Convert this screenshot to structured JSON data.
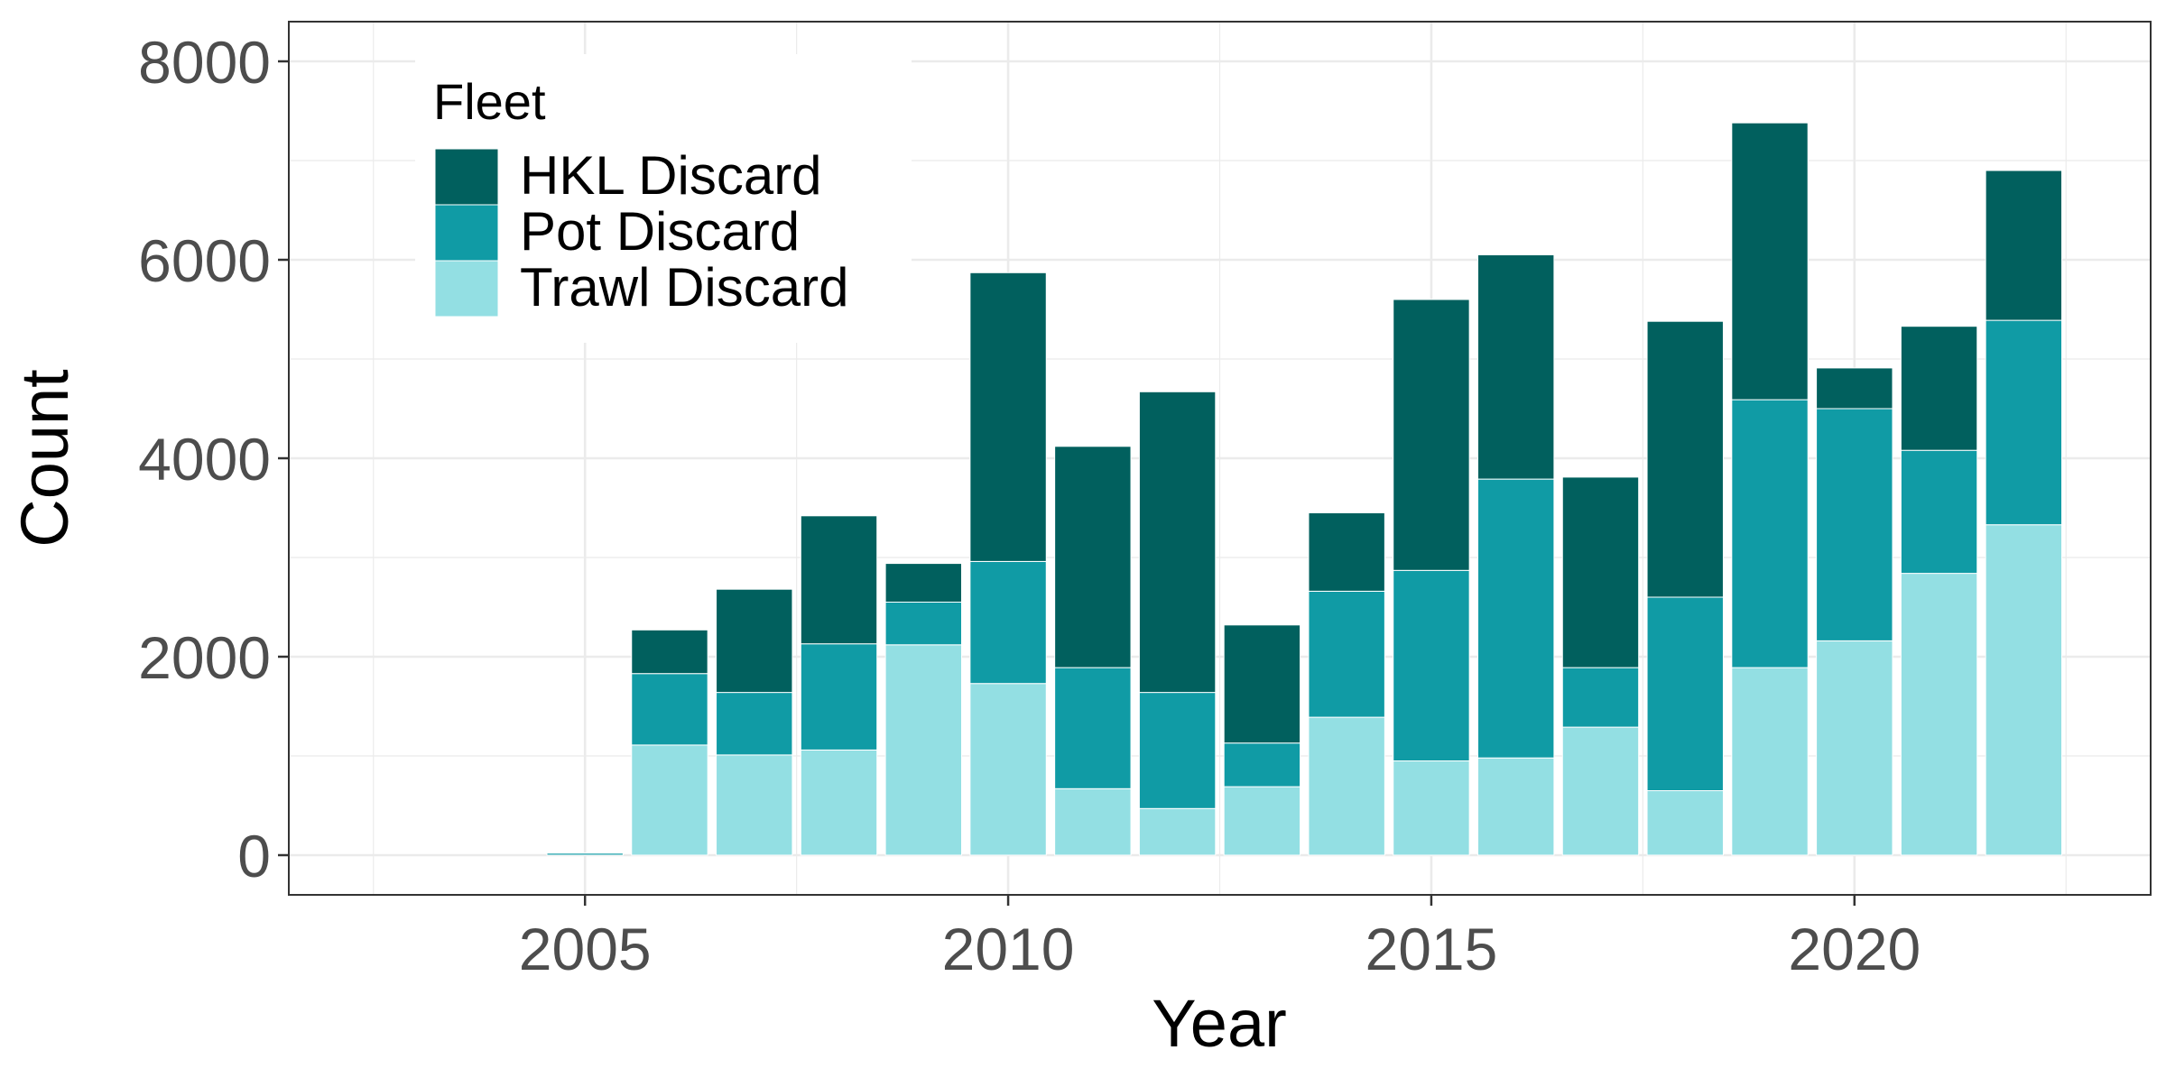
{
  "chart_data": {
    "type": "bar",
    "stacked": true,
    "xlabel": "Year",
    "ylabel": "Count",
    "x_ticks": [
      "2005",
      "2010",
      "2015",
      "2020"
    ],
    "y_ticks": [
      "0",
      "2000",
      "4000",
      "6000",
      "8000"
    ],
    "xlim": [
      2001.5,
      2023.5
    ],
    "ylim": [
      -400,
      8400
    ],
    "grid": true,
    "legend": {
      "title": "Fleet",
      "placement": "top-left inside plot",
      "entries": [
        "HKL Discard",
        "Pot Discard",
        "Trawl Discard"
      ]
    },
    "x": [
      2005,
      2006,
      2007,
      2008,
      2009,
      2010,
      2011,
      2012,
      2013,
      2014,
      2015,
      2016,
      2017,
      2018,
      2019,
      2020,
      2021,
      2022
    ],
    "series": [
      {
        "name": "Trawl Discard",
        "color": "#93DFE3",
        "values": [
          0,
          1110,
          1010,
          1060,
          2120,
          1730,
          670,
          470,
          690,
          1390,
          950,
          980,
          1290,
          650,
          1890,
          2160,
          2840,
          3330
        ]
      },
      {
        "name": "Pot Discard",
        "color": "#109BA5",
        "values": [
          20,
          720,
          630,
          1070,
          430,
          1230,
          1220,
          1170,
          440,
          1270,
          1920,
          2810,
          600,
          1950,
          2700,
          2340,
          1240,
          2060
        ]
      },
      {
        "name": "HKL Discard",
        "color": "#01605E",
        "values": [
          0,
          440,
          1040,
          1290,
          390,
          2910,
          2230,
          3030,
          1190,
          790,
          2730,
          2260,
          1920,
          2780,
          2790,
          410,
          1250,
          1510
        ]
      }
    ]
  }
}
